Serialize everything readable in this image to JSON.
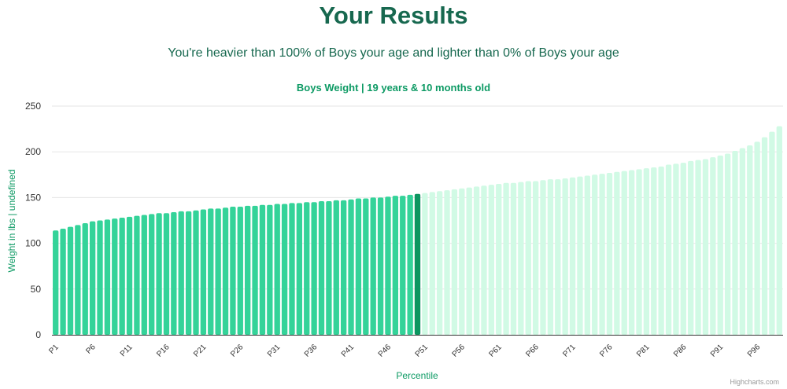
{
  "page": {
    "title": "Your Results",
    "subtitle": "You're heavier than 100% of Boys your age and lighter than 0% of Boys your age"
  },
  "credits": "Highcharts.com",
  "colors": {
    "title": "#17684f",
    "chart_title": "#0d9a64",
    "filled_bar": "#34d399",
    "highlight_bar": "#0c9660",
    "empty_bar": "#d1fae5",
    "grid": "#e6e6e6",
    "axis_text": "#333333"
  },
  "chart_data": {
    "type": "bar",
    "title": "Boys Weight | 19 years & 10 months old",
    "xlabel": "Percentile",
    "ylabel": "Weight in lbs | undefined",
    "ylim": [
      0,
      250
    ],
    "yticks": [
      0,
      50,
      100,
      150,
      200,
      250
    ],
    "grid": true,
    "highlight_index": 49,
    "xtick_labels": [
      "P1",
      "P6",
      "P11",
      "P16",
      "P21",
      "P26",
      "P31",
      "P36",
      "P41",
      "P46",
      "P51",
      "P56",
      "P61",
      "P66",
      "P71",
      "P76",
      "P81",
      "P86",
      "P91",
      "P96"
    ],
    "categories": [
      "P1",
      "P2",
      "P3",
      "P4",
      "P5",
      "P6",
      "P7",
      "P8",
      "P9",
      "P10",
      "P11",
      "P12",
      "P13",
      "P14",
      "P15",
      "P16",
      "P17",
      "P18",
      "P19",
      "P20",
      "P21",
      "P22",
      "P23",
      "P24",
      "P25",
      "P26",
      "P27",
      "P28",
      "P29",
      "P30",
      "P31",
      "P32",
      "P33",
      "P34",
      "P35",
      "P36",
      "P37",
      "P38",
      "P39",
      "P40",
      "P41",
      "P42",
      "P43",
      "P44",
      "P45",
      "P46",
      "P47",
      "P48",
      "P49",
      "P50",
      "P51",
      "P52",
      "P53",
      "P54",
      "P55",
      "P56",
      "P57",
      "P58",
      "P59",
      "P60",
      "P61",
      "P62",
      "P63",
      "P64",
      "P65",
      "P66",
      "P67",
      "P68",
      "P69",
      "P70",
      "P71",
      "P72",
      "P73",
      "P74",
      "P75",
      "P76",
      "P77",
      "P78",
      "P79",
      "P80",
      "P81",
      "P82",
      "P83",
      "P84",
      "P85",
      "P86",
      "P87",
      "P88",
      "P89",
      "P90",
      "P91",
      "P92",
      "P93",
      "P94",
      "P95",
      "P96",
      "P97",
      "P98",
      "P99"
    ],
    "values": [
      114,
      116,
      118,
      120,
      122,
      124,
      125,
      126,
      127,
      128,
      129,
      130,
      131,
      132,
      133,
      133,
      134,
      135,
      135,
      136,
      137,
      138,
      138,
      139,
      140,
      140,
      141,
      141,
      142,
      142,
      143,
      143,
      144,
      144,
      145,
      145,
      146,
      146,
      147,
      147,
      148,
      149,
      149,
      150,
      150,
      151,
      152,
      152,
      153,
      154,
      155,
      156,
      157,
      158,
      159,
      160,
      161,
      162,
      163,
      164,
      165,
      166,
      166,
      167,
      168,
      168,
      169,
      170,
      170,
      171,
      172,
      173,
      174,
      175,
      176,
      177,
      178,
      179,
      180,
      181,
      182,
      183,
      184,
      186,
      187,
      188,
      190,
      191,
      192,
      194,
      196,
      198,
      201,
      204,
      207,
      211,
      216,
      222,
      228
    ]
  }
}
